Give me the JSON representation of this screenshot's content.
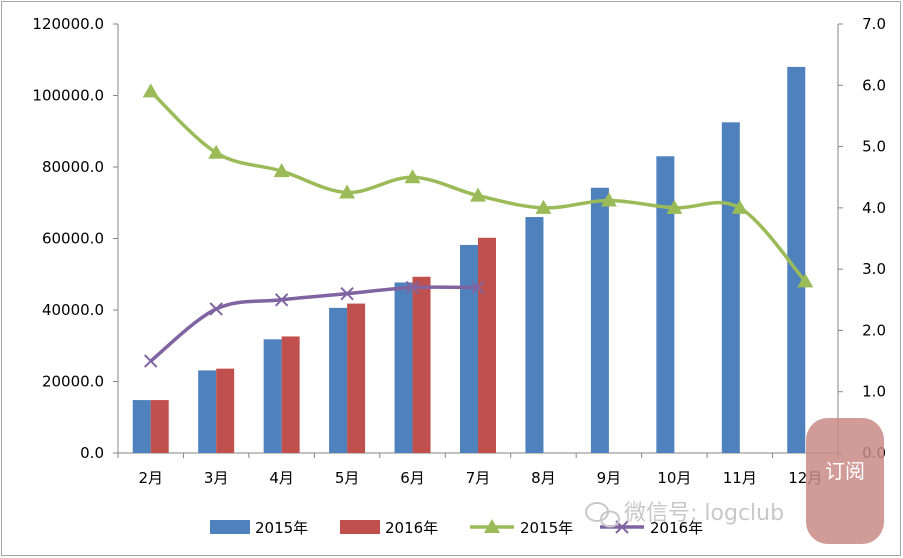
{
  "chart_data": {
    "type": "bar",
    "categories": [
      "2月",
      "3月",
      "4月",
      "5月",
      "6月",
      "7月",
      "8月",
      "9月",
      "10月",
      "11月",
      "12月"
    ],
    "bar_series": [
      {
        "name": "2015年",
        "color": "#4f81bd",
        "values": [
          14800,
          23100,
          31800,
          40600,
          47700,
          58200,
          66000,
          74200,
          83000,
          92500,
          108000
        ]
      },
      {
        "name": "2016年",
        "color": "#c0504d",
        "values": [
          14800,
          23600,
          32600,
          41800,
          49300,
          60200,
          null,
          null,
          null,
          null,
          null
        ]
      }
    ],
    "line_series": [
      {
        "name": "2015年",
        "color": "#9bbb59",
        "marker": "triangle",
        "values": [
          5.9,
          4.9,
          4.6,
          4.25,
          4.5,
          4.2,
          4.0,
          4.12,
          4.0,
          4.0,
          2.8
        ]
      },
      {
        "name": "2016年",
        "color": "#8064a2",
        "marker": "x",
        "values": [
          1.5,
          2.35,
          2.5,
          2.6,
          2.7,
          2.7,
          null,
          null,
          null,
          null,
          null
        ]
      }
    ],
    "ylim_left": [
      0,
      120000
    ],
    "yticks_left": [
      "0.0",
      "20000.0",
      "40000.0",
      "60000.0",
      "80000.0",
      "100000.0",
      "120000.0"
    ],
    "ylim_right": [
      0,
      7
    ],
    "yticks_right": [
      "0.0",
      "1.0",
      "2.0",
      "3.0",
      "4.0",
      "5.0",
      "6.0",
      "7.0"
    ],
    "grid": false,
    "legend_position": "bottom"
  },
  "watermark": {
    "text": "微信号: logclub",
    "seal": "订阅"
  }
}
